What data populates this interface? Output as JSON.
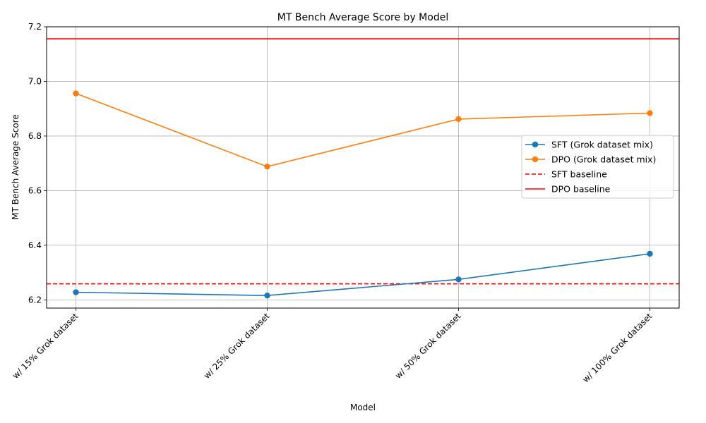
{
  "chart_data": {
    "type": "line",
    "title": "MT Bench Average Score by Model",
    "xlabel": "Model",
    "ylabel": "MT Bench Average Score",
    "categories": [
      "w/ 15% Grok dataset",
      "w/ 25% Grok dataset",
      "w/ 50% Grok dataset",
      "w/ 100% Grok dataset"
    ],
    "ylim": [
      6.17,
      7.2
    ],
    "yticks": [
      6.2,
      6.4,
      6.6,
      6.8,
      7.0,
      7.2
    ],
    "ytick_labels": [
      "6.2",
      "6.4",
      "6.6",
      "6.8",
      "7.0",
      "7.2"
    ],
    "grid": true,
    "legend_position": "center-right",
    "series": [
      {
        "name": "SFT (Grok dataset mix)",
        "values": [
          6.228,
          6.216,
          6.275,
          6.369
        ],
        "color": "#1f77b4",
        "style": "solid",
        "marker": "circle"
      },
      {
        "name": "DPO (Grok dataset mix)",
        "values": [
          6.956,
          6.688,
          6.862,
          6.884
        ],
        "color": "#ff7f0e",
        "style": "solid",
        "marker": "circle"
      }
    ],
    "baselines": [
      {
        "name": "SFT baseline",
        "value": 6.259,
        "color": "#ff0000",
        "style": "dashed"
      },
      {
        "name": "DPO baseline",
        "value": 7.156,
        "color": "#ff0000",
        "style": "solid"
      }
    ]
  }
}
